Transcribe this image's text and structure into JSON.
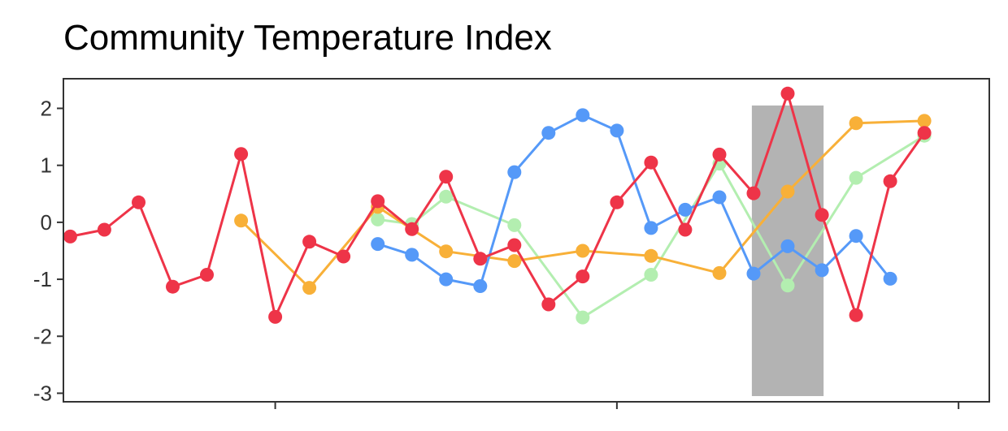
{
  "chart_data": {
    "type": "line",
    "title": "Community Temperature Index",
    "xlabel": "",
    "ylabel": "",
    "xlim": [
      -0.2,
      26.9
    ],
    "ylim": [
      -3.15,
      2.52
    ],
    "yticks": [
      2,
      1,
      0,
      -1,
      -2,
      -3
    ],
    "ytick_labels": [
      "2",
      "1",
      "0",
      "-1",
      "-2",
      "-3"
    ],
    "xticks": [
      6,
      16,
      26
    ],
    "grid": false,
    "legend": "none",
    "highlight_band": {
      "x0": 19.95,
      "x1": 22.05,
      "y0": -3.05,
      "y1": 2.05,
      "color": "#b3b3b3"
    },
    "series": [
      {
        "color": "#b3eeb0",
        "points": [
          {
            "x": 9,
            "y": 0.05
          },
          {
            "x": 10,
            "y": -0.03
          },
          {
            "x": 11,
            "y": 0.45
          },
          {
            "x": 13,
            "y": -0.05
          },
          {
            "x": 15,
            "y": -1.67
          },
          {
            "x": 17,
            "y": -0.92
          },
          {
            "x": 19,
            "y": 1.03
          },
          {
            "x": 21,
            "y": -1.11
          },
          {
            "x": 23,
            "y": 0.78
          },
          {
            "x": 25,
            "y": 1.52
          }
        ]
      },
      {
        "color": "#f8b038",
        "points": [
          {
            "x": 5,
            "y": 0.03
          },
          {
            "x": 7,
            "y": -1.15
          },
          {
            "x": 9,
            "y": 0.27
          },
          {
            "x": 11,
            "y": -0.51
          },
          {
            "x": 13,
            "y": -0.68
          },
          {
            "x": 15,
            "y": -0.5
          },
          {
            "x": 17,
            "y": -0.59
          },
          {
            "x": 19,
            "y": -0.89
          },
          {
            "x": 21,
            "y": 0.54
          },
          {
            "x": 23,
            "y": 1.74
          },
          {
            "x": 25,
            "y": 1.78
          }
        ]
      },
      {
        "color": "#5599f8",
        "points": [
          {
            "x": 9,
            "y": -0.38
          },
          {
            "x": 10,
            "y": -0.57
          },
          {
            "x": 11,
            "y": -1.0
          },
          {
            "x": 12,
            "y": -1.12
          },
          {
            "x": 13,
            "y": 0.88
          },
          {
            "x": 14,
            "y": 1.57
          },
          {
            "x": 15,
            "y": 1.88
          },
          {
            "x": 16,
            "y": 1.61
          },
          {
            "x": 17,
            "y": -0.1
          },
          {
            "x": 18,
            "y": 0.22
          },
          {
            "x": 19,
            "y": 0.44
          },
          {
            "x": 20,
            "y": -0.9
          },
          {
            "x": 21,
            "y": -0.42
          },
          {
            "x": 22,
            "y": -0.84
          },
          {
            "x": 23,
            "y": -0.24
          },
          {
            "x": 24,
            "y": -0.99
          }
        ]
      },
      {
        "color": "#ee3448",
        "points": [
          {
            "x": 0,
            "y": -0.25
          },
          {
            "x": 1,
            "y": -0.13
          },
          {
            "x": 2,
            "y": 0.35
          },
          {
            "x": 3,
            "y": -1.13
          },
          {
            "x": 4,
            "y": -0.92
          },
          {
            "x": 5,
            "y": 1.2
          },
          {
            "x": 6,
            "y": -1.66
          },
          {
            "x": 7,
            "y": -0.34
          },
          {
            "x": 8,
            "y": -0.6
          },
          {
            "x": 9,
            "y": 0.37
          },
          {
            "x": 10,
            "y": -0.12
          },
          {
            "x": 11,
            "y": 0.8
          },
          {
            "x": 12,
            "y": -0.64
          },
          {
            "x": 13,
            "y": -0.4
          },
          {
            "x": 14,
            "y": -1.44
          },
          {
            "x": 15,
            "y": -0.95
          },
          {
            "x": 16,
            "y": 0.35
          },
          {
            "x": 17,
            "y": 1.05
          },
          {
            "x": 18,
            "y": -0.13
          },
          {
            "x": 19,
            "y": 1.19
          },
          {
            "x": 20,
            "y": 0.51
          },
          {
            "x": 21,
            "y": 2.26
          },
          {
            "x": 22,
            "y": 0.13
          },
          {
            "x": 23,
            "y": -1.63
          },
          {
            "x": 24,
            "y": 0.72
          },
          {
            "x": 25,
            "y": 1.57
          }
        ]
      }
    ]
  }
}
